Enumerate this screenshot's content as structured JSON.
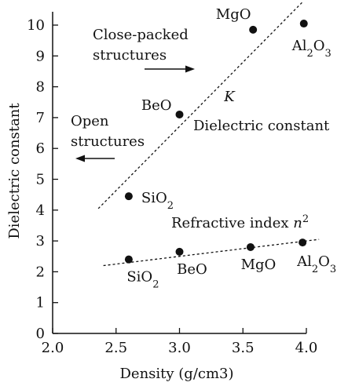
{
  "chart_data": {
    "type": "scatter",
    "title": "",
    "xlabel": "Density (g/cm3)",
    "ylabel": "Dielectric constant",
    "xlim": [
      2.0,
      4.0
    ],
    "ylim": [
      0,
      10.5
    ],
    "x_ticks": [
      "2.0",
      "2.5",
      "3.0",
      "3.5",
      "4.0"
    ],
    "x_tick_values": [
      2.0,
      2.5,
      3.0,
      3.5,
      4.0
    ],
    "y_ticks": [
      "0",
      "1",
      "2",
      "3",
      "4",
      "5",
      "6",
      "7",
      "8",
      "9",
      "10"
    ],
    "y_tick_values": [
      0,
      1,
      2,
      3,
      4,
      5,
      6,
      7,
      8,
      9,
      10
    ],
    "grid": false,
    "series": [
      {
        "name": "Dielectric constant",
        "symbol": "K",
        "points": [
          {
            "label": "SiO2",
            "x": 2.6,
            "y": 4.45
          },
          {
            "label": "BeO",
            "x": 3.0,
            "y": 7.1
          },
          {
            "label": "MgO",
            "x": 3.58,
            "y": 9.85
          },
          {
            "label": "Al2O3",
            "x": 3.98,
            "y": 10.05
          }
        ],
        "trend_line": {
          "x": [
            2.36,
            3.97
          ],
          "y": [
            4.05,
            10.75
          ]
        }
      },
      {
        "name": "Refractive index n2",
        "points": [
          {
            "label": "SiO2",
            "x": 2.6,
            "y": 2.4
          },
          {
            "label": "BeO",
            "x": 3.0,
            "y": 2.65
          },
          {
            "label": "MgO",
            "x": 3.56,
            "y": 2.8
          },
          {
            "label": "Al2O3",
            "x": 3.97,
            "y": 2.95
          }
        ],
        "trend_line": {
          "x": [
            2.4,
            4.1
          ],
          "y": [
            2.2,
            3.05
          ]
        }
      }
    ],
    "annotations": [
      {
        "text": "Close-packed structures",
        "lines": [
          "Close-packed",
          "structures"
        ],
        "arrow": "right"
      },
      {
        "text": "Open structures",
        "lines": [
          "Open",
          "structures"
        ],
        "arrow": "left"
      }
    ],
    "colors": {
      "ink": "#111111",
      "background": "#ffffff"
    }
  }
}
